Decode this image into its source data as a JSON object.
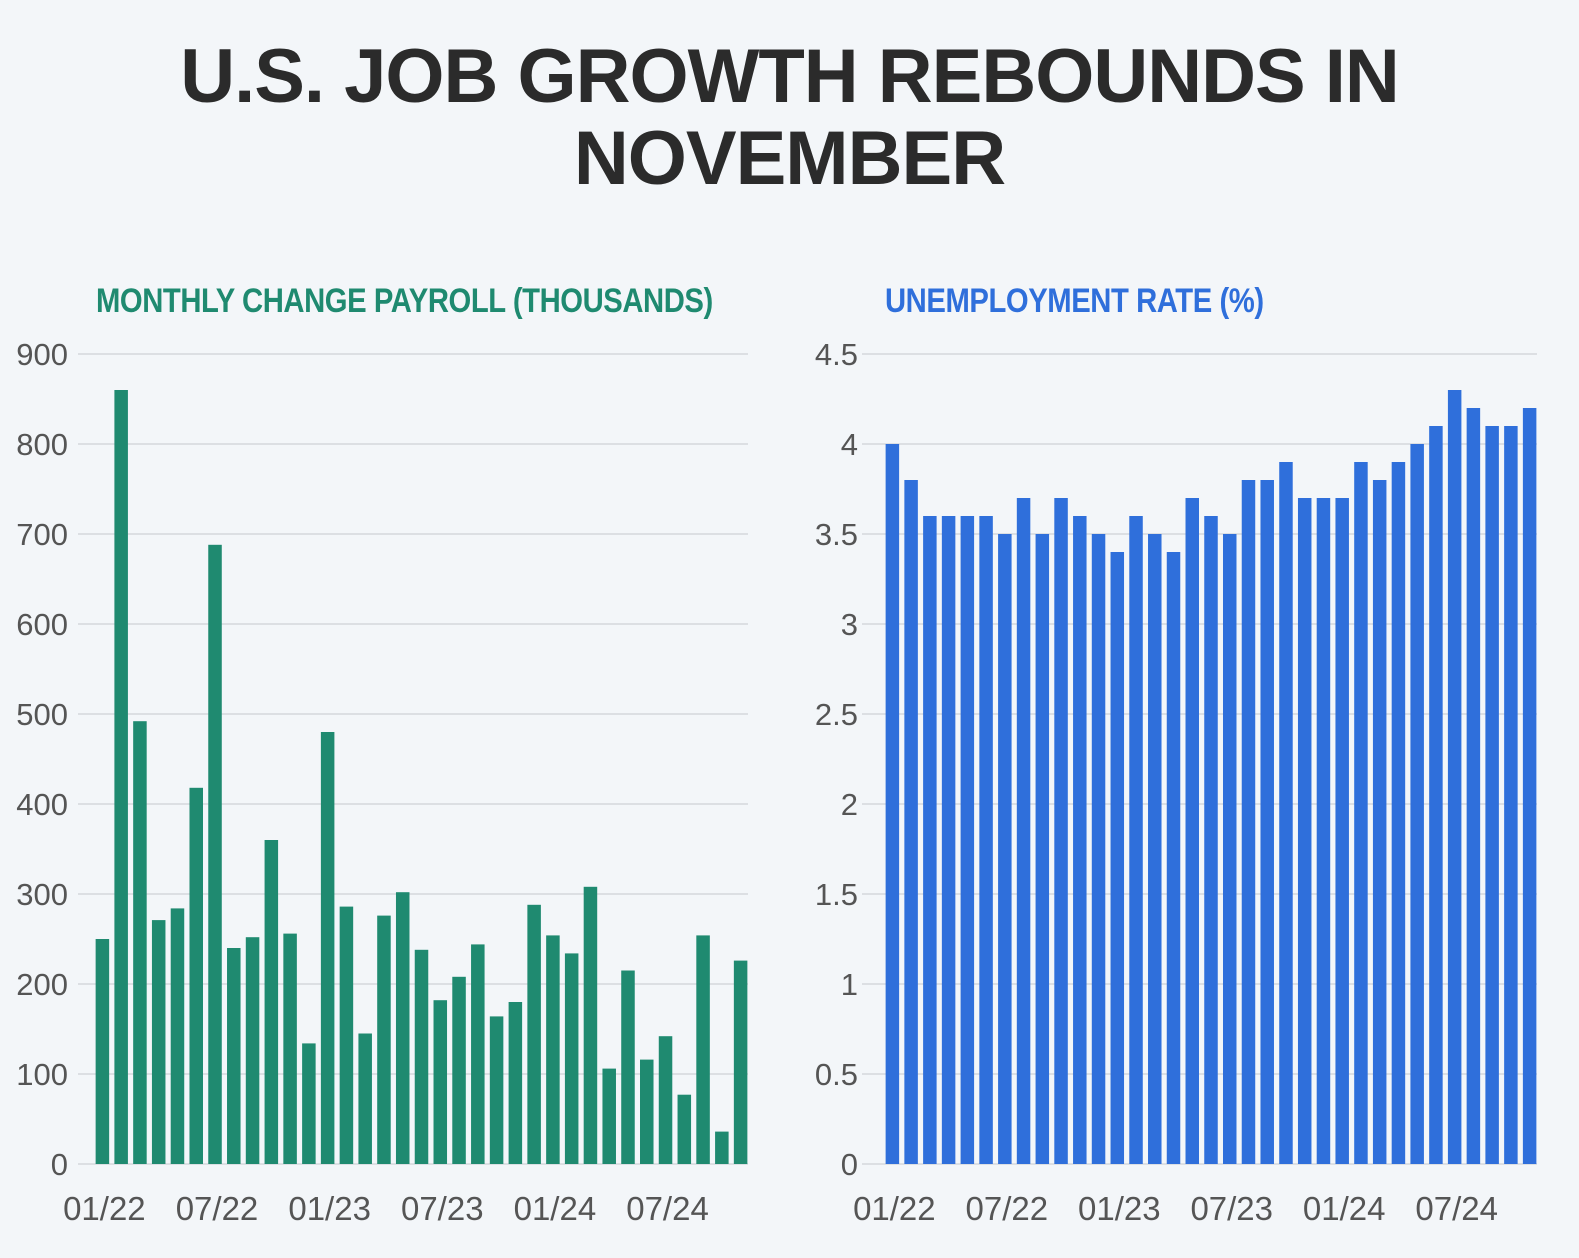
{
  "title": "U.S. JOB GROWTH REBOUNDS IN NOVEMBER",
  "colors": {
    "payroll_bar": "#1f8a70",
    "unemployment_bar": "#2f6fdb",
    "title": "#2b2b2b",
    "grid": "#dcdfe3",
    "axis_text": "#555555"
  },
  "chart_data": [
    {
      "type": "bar",
      "title": "MONTHLY CHANGE PAYROLL (THOUSANDS)",
      "ylim": [
        0,
        900
      ],
      "yticks": [
        0,
        100,
        200,
        300,
        400,
        500,
        600,
        700,
        800,
        900
      ],
      "x_tick_labels": [
        "01/22",
        "07/22",
        "01/23",
        "07/23",
        "01/24",
        "07/24"
      ],
      "grid": true,
      "categories": [
        "01/22",
        "02/22",
        "03/22",
        "04/22",
        "05/22",
        "06/22",
        "07/22",
        "08/22",
        "09/22",
        "10/22",
        "11/22",
        "12/22",
        "01/23",
        "02/23",
        "03/23",
        "04/23",
        "05/23",
        "06/23",
        "07/23",
        "08/23",
        "09/23",
        "10/23",
        "11/23",
        "12/23",
        "01/24",
        "02/24",
        "03/24",
        "04/24",
        "05/24",
        "06/24",
        "07/24",
        "08/24",
        "09/24",
        "10/24",
        "11/24"
      ],
      "values": [
        250,
        860,
        492,
        271,
        284,
        418,
        688,
        240,
        252,
        360,
        256,
        134,
        480,
        286,
        145,
        276,
        302,
        238,
        182,
        208,
        244,
        164,
        180,
        288,
        254,
        234,
        308,
        106,
        215,
        116,
        142,
        77,
        254,
        36,
        226
      ]
    },
    {
      "type": "bar",
      "title": "UNEMPLOYMENT RATE (%)",
      "ylim": [
        0,
        4.5
      ],
      "yticks": [
        0,
        0.5,
        1,
        1.5,
        2,
        2.5,
        3,
        3.5,
        4,
        4.5
      ],
      "x_tick_labels": [
        "01/22",
        "07/22",
        "01/23",
        "07/23",
        "01/24",
        "07/24"
      ],
      "grid": true,
      "categories": [
        "01/22",
        "02/22",
        "03/22",
        "04/22",
        "05/22",
        "06/22",
        "07/22",
        "08/22",
        "09/22",
        "10/22",
        "11/22",
        "12/22",
        "01/23",
        "02/23",
        "03/23",
        "04/23",
        "05/23",
        "06/23",
        "07/23",
        "08/23",
        "09/23",
        "10/23",
        "11/23",
        "12/23",
        "01/24",
        "02/24",
        "03/24",
        "04/24",
        "05/24",
        "06/24",
        "07/24",
        "08/24",
        "09/24",
        "10/24",
        "11/24"
      ],
      "values": [
        4.0,
        3.8,
        3.6,
        3.6,
        3.6,
        3.6,
        3.5,
        3.7,
        3.5,
        3.7,
        3.6,
        3.5,
        3.4,
        3.6,
        3.5,
        3.4,
        3.7,
        3.6,
        3.5,
        3.8,
        3.8,
        3.9,
        3.7,
        3.7,
        3.7,
        3.9,
        3.8,
        3.9,
        4.0,
        4.1,
        4.3,
        4.2,
        4.1,
        4.1,
        4.2
      ]
    }
  ]
}
